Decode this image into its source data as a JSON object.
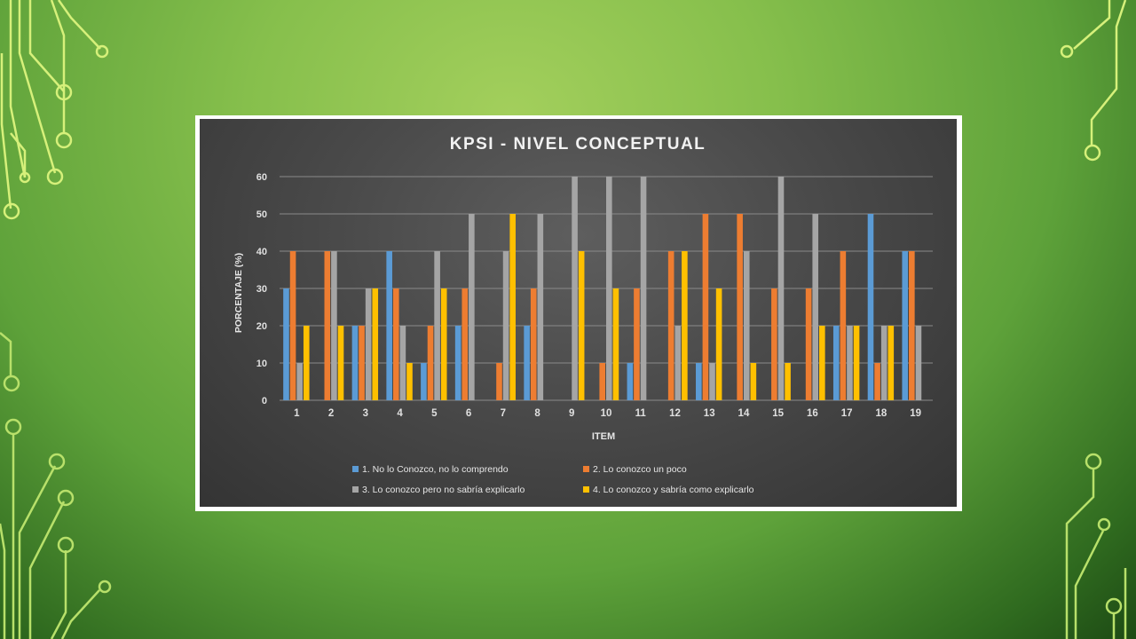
{
  "chart_data": {
    "type": "bar",
    "title": "KPSI - NIVEL CONCEPTUAL",
    "xlabel": "ITEM",
    "ylabel": "PORCENTAJE (%)",
    "ylim": [
      0,
      60
    ],
    "yticks": [
      0,
      10,
      20,
      30,
      40,
      50,
      60
    ],
    "grid": true,
    "legend_position": "bottom",
    "categories": [
      "1",
      "2",
      "3",
      "4",
      "5",
      "6",
      "7",
      "8",
      "9",
      "10",
      "11",
      "12",
      "13",
      "14",
      "15",
      "16",
      "17",
      "18",
      "19"
    ],
    "series": [
      {
        "name": "1. No lo Conozco, no lo comprendo",
        "color": "#5b9bd5",
        "values": [
          30,
          0,
          20,
          40,
          10,
          20,
          0,
          20,
          0,
          0,
          10,
          0,
          10,
          0,
          0,
          0,
          20,
          50,
          40
        ]
      },
      {
        "name": "2. Lo conozco un poco",
        "color": "#ed7d31",
        "values": [
          40,
          40,
          20,
          30,
          20,
          30,
          10,
          30,
          0,
          10,
          30,
          40,
          50,
          50,
          30,
          30,
          40,
          10,
          40
        ]
      },
      {
        "name": "3. Lo conozco pero no sabría explicarlo",
        "color": "#a5a5a5",
        "values": [
          10,
          40,
          30,
          20,
          40,
          50,
          40,
          50,
          60,
          60,
          60,
          20,
          10,
          40,
          60,
          50,
          20,
          20,
          20
        ]
      },
      {
        "name": "4. Lo conozco y sabría como explicarlo",
        "color": "#ffc000",
        "values": [
          20,
          20,
          30,
          10,
          30,
          0,
          50,
          0,
          40,
          30,
          0,
          40,
          30,
          10,
          10,
          20,
          20,
          20,
          0
        ]
      }
    ]
  }
}
